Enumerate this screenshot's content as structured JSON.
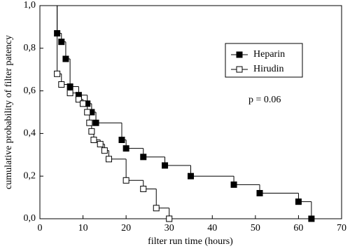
{
  "chart_data": {
    "type": "step",
    "x_label": "filter run time (hours)",
    "y_label": "cumulative probability of filter patency",
    "annotation": "p = 0.06",
    "xlim": [
      0,
      70
    ],
    "xticks": [
      0,
      10,
      20,
      30,
      40,
      50,
      60,
      70
    ],
    "ylim": [
      0,
      1
    ],
    "yticks": [
      {
        "value": 0,
        "label": "0,0"
      },
      {
        "value": 0.2,
        "label": "0,2"
      },
      {
        "value": 0.4,
        "label": "0,4"
      },
      {
        "value": 0.6,
        "label": "0,6"
      },
      {
        "value": 0.8,
        "label": "0,8"
      },
      {
        "value": 1,
        "label": "1,0"
      }
    ],
    "legend": "upper right",
    "series": [
      {
        "name": "Heparin",
        "color": "#000000",
        "marker": "filled",
        "x": [
          4,
          5,
          6,
          7,
          9,
          11,
          12,
          13,
          19,
          20,
          24,
          29,
          35,
          45,
          51,
          60,
          63
        ],
        "values": [
          0.87,
          0.83,
          0.75,
          0.62,
          0.58,
          0.54,
          0.5,
          0.45,
          0.37,
          0.33,
          0.29,
          0.25,
          0.2,
          0.16,
          0.12,
          0.08,
          0
        ]
      },
      {
        "name": "Hirudin",
        "color": "#000000",
        "marker": "open",
        "x": [
          4,
          5,
          7,
          9,
          10,
          11,
          11.5,
          12,
          12.5,
          14,
          15,
          16,
          20,
          24,
          27,
          30
        ],
        "values": [
          0.68,
          0.63,
          0.59,
          0.56,
          0.54,
          0.5,
          0.45,
          0.41,
          0.37,
          0.35,
          0.32,
          0.28,
          0.18,
          0.14,
          0.05,
          0
        ]
      }
    ]
  }
}
